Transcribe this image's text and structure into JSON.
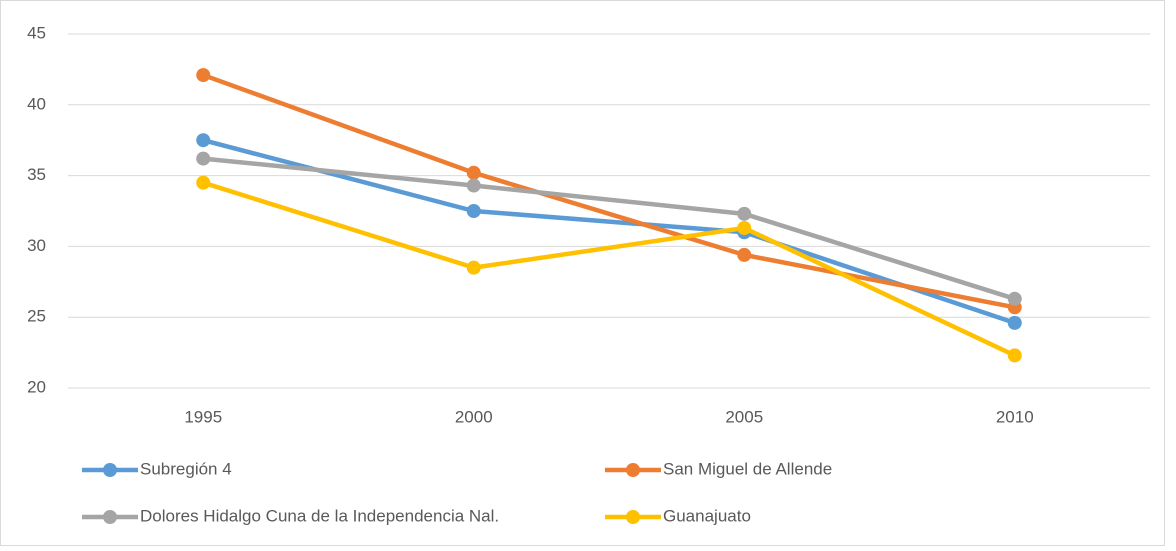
{
  "chart_data": {
    "type": "line",
    "categories": [
      "1995",
      "2000",
      "2005",
      "2010"
    ],
    "series": [
      {
        "name": "Subregión 4",
        "color": "#5b9bd5",
        "values": [
          37.5,
          32.5,
          31.0,
          24.6
        ]
      },
      {
        "name": "San Miguel de Allende",
        "color": "#ed7d31",
        "values": [
          42.1,
          35.2,
          29.4,
          25.7
        ]
      },
      {
        "name": "Dolores Hidalgo Cuna de la Independencia Nal.",
        "color": "#a5a5a5",
        "values": [
          36.2,
          34.3,
          32.3,
          26.3
        ]
      },
      {
        "name": "Guanajuato",
        "color": "#ffc000",
        "values": [
          34.5,
          28.5,
          31.3,
          22.3
        ]
      }
    ],
    "ylim": [
      20,
      45
    ],
    "yticks": [
      20,
      25,
      30,
      35,
      40,
      45
    ],
    "grid": true,
    "legend": "bottom"
  }
}
